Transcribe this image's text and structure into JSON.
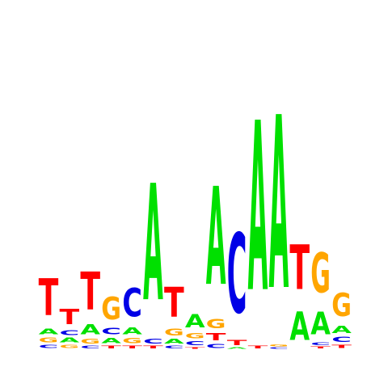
{
  "chart_data": {
    "type": "sequence-logo",
    "colors": {
      "A": "#00e000",
      "C": "#0000e6",
      "G": "#ffa500",
      "T": "#ff0000"
    },
    "positions": [
      {
        "index": 1,
        "letters": [
          {
            "base": "C",
            "height": 0.1
          },
          {
            "base": "G",
            "height": 0.14
          },
          {
            "base": "A",
            "height": 0.18
          },
          {
            "base": "T",
            "height": 1.1
          }
        ]
      },
      {
        "index": 2,
        "letters": [
          {
            "base": "G",
            "height": 0.1
          },
          {
            "base": "A",
            "height": 0.14
          },
          {
            "base": "C",
            "height": 0.14
          },
          {
            "base": "T",
            "height": 0.45
          }
        ]
      },
      {
        "index": 3,
        "letters": [
          {
            "base": "C",
            "height": 0.08
          },
          {
            "base": "G",
            "height": 0.14
          },
          {
            "base": "A",
            "height": 0.3
          },
          {
            "base": "T",
            "height": 1.13
          }
        ]
      },
      {
        "index": 4,
        "letters": [
          {
            "base": "T",
            "height": 0.08
          },
          {
            "base": "A",
            "height": 0.16
          },
          {
            "base": "C",
            "height": 0.18
          },
          {
            "base": "G",
            "height": 0.68
          }
        ]
      },
      {
        "index": 5,
        "letters": [
          {
            "base": "T",
            "height": 0.08
          },
          {
            "base": "G",
            "height": 0.16
          },
          {
            "base": "A",
            "height": 0.2
          },
          {
            "base": "C",
            "height": 0.85
          }
        ]
      },
      {
        "index": 6,
        "letters": [
          {
            "base": "T",
            "height": 0.08
          },
          {
            "base": "C",
            "height": 0.14
          },
          {
            "base": "A",
            "height": 3.5
          }
        ]
      },
      {
        "index": 7,
        "letters": [
          {
            "base": "C",
            "height": 0.08
          },
          {
            "base": "A",
            "height": 0.14
          },
          {
            "base": "G",
            "height": 0.2
          },
          {
            "base": "T",
            "height": 0.9
          }
        ]
      },
      {
        "index": 8,
        "letters": [
          {
            "base": "T",
            "height": 0.05
          },
          {
            "base": "C",
            "height": 0.12
          },
          {
            "base": "G",
            "height": 0.16
          },
          {
            "base": "A",
            "height": 0.4
          }
        ]
      },
      {
        "index": 9,
        "letters": [
          {
            "base": "C",
            "height": 0.12
          },
          {
            "base": "T",
            "height": 0.22
          },
          {
            "base": "G",
            "height": 0.28
          },
          {
            "base": "A",
            "height": 2.95
          }
        ]
      },
      {
        "index": 10,
        "letters": [
          {
            "base": "A",
            "height": 0.04
          },
          {
            "base": "T",
            "height": 0.16
          },
          {
            "base": "C",
            "height": 2.4
          }
        ]
      },
      {
        "index": 11,
        "letters": [
          {
            "base": "T",
            "height": 0.08
          },
          {
            "base": "A",
            "height": 5.1
          }
        ]
      },
      {
        "index": 12,
        "letters": [
          {
            "base": "C",
            "height": 0.04
          },
          {
            "base": "G",
            "height": 0.06
          },
          {
            "base": "A",
            "height": 5.2
          }
        ]
      },
      {
        "index": 13,
        "letters": [
          {
            "base": "A",
            "height": 0.85
          },
          {
            "base": "T",
            "height": 1.35
          }
        ]
      },
      {
        "index": 14,
        "letters": [
          {
            "base": "T",
            "height": 0.06
          },
          {
            "base": "C",
            "height": 0.08
          },
          {
            "base": "A",
            "height": 0.68
          },
          {
            "base": "G",
            "height": 1.2
          }
        ]
      },
      {
        "index": 15,
        "letters": [
          {
            "base": "T",
            "height": 0.1
          },
          {
            "base": "C",
            "height": 0.16
          },
          {
            "base": "A",
            "height": 0.22
          },
          {
            "base": "G",
            "height": 0.7
          }
        ]
      }
    ]
  }
}
